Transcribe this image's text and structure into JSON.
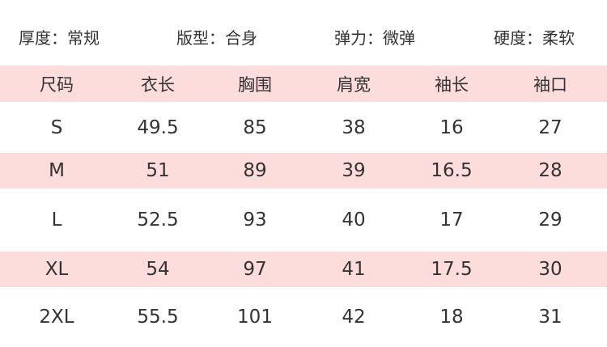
{
  "attributes": [
    "厚度：常规",
    "版型：合身",
    "弹力：微弹",
    "硬度：柔软"
  ],
  "table": {
    "headers": [
      "尺码",
      "衣长",
      "胸围",
      "肩宽",
      "袖长",
      "袖口"
    ],
    "rows": [
      [
        "S",
        "49.5",
        "85",
        "38",
        "16",
        "27"
      ],
      [
        "M",
        "51",
        "89",
        "39",
        "16.5",
        "28"
      ],
      [
        "L",
        "52.5",
        "93",
        "40",
        "17",
        "29"
      ],
      [
        "XL",
        "54",
        "97",
        "41",
        "17.5",
        "30"
      ],
      [
        "2XL",
        "55.5",
        "101",
        "42",
        "18",
        "31"
      ]
    ]
  },
  "colors": {
    "band": "#fddcdc",
    "text": "#333333"
  }
}
